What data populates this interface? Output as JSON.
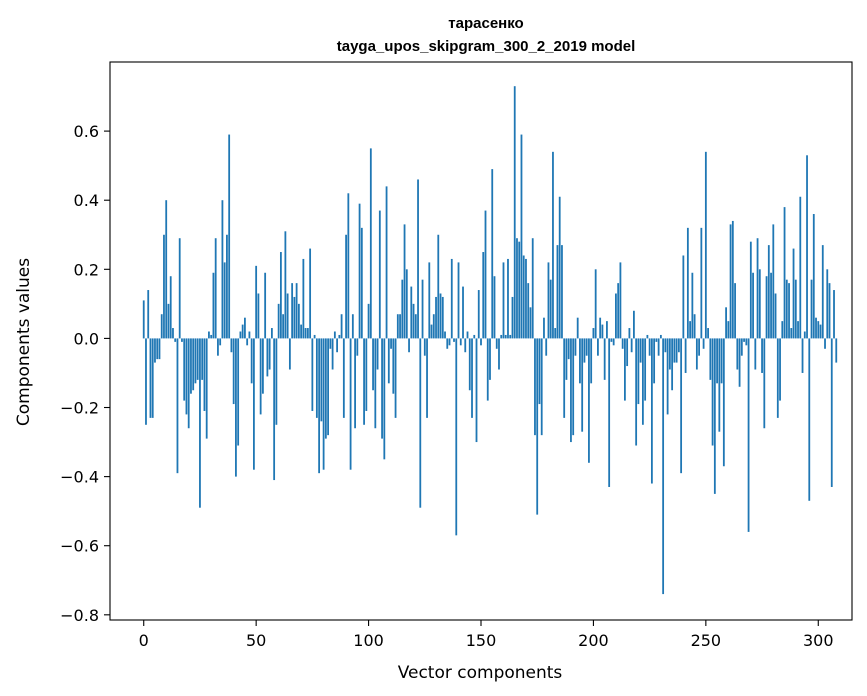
{
  "chart_data": {
    "type": "bar",
    "title": "тарасенко",
    "subtitle": "tayga_upos_skipgram_300_2_2019 model",
    "xlabel": "Vector components",
    "ylabel": "Components values",
    "xlim": [
      -15,
      315
    ],
    "ylim": [
      -0.815,
      0.8
    ],
    "xticks": [
      0,
      50,
      100,
      150,
      200,
      250,
      300
    ],
    "xtick_labels": [
      "0",
      "50",
      "100",
      "150",
      "200",
      "250",
      "300"
    ],
    "yticks": [
      -0.8,
      -0.6,
      -0.4,
      -0.2,
      0.0,
      0.2,
      0.4,
      0.6
    ],
    "ytick_labels": [
      "−0.8",
      "−0.6",
      "−0.4",
      "−0.2",
      "0.0",
      "0.2",
      "0.4",
      "0.6"
    ],
    "grid": false,
    "bar_color": "#1f77b4",
    "series": [
      {
        "name": "components",
        "values": [
          0.11,
          -0.25,
          0.14,
          -0.23,
          -0.23,
          -0.07,
          -0.06,
          -0.06,
          0.07,
          0.3,
          0.4,
          0.1,
          0.18,
          0.03,
          -0.01,
          -0.39,
          0.29,
          -0.01,
          -0.18,
          -0.22,
          -0.26,
          -0.16,
          -0.15,
          -0.13,
          -0.12,
          -0.49,
          -0.12,
          -0.21,
          -0.29,
          0.02,
          0.01,
          0.19,
          0.29,
          -0.05,
          -0.02,
          0.4,
          0.22,
          0.3,
          0.59,
          -0.04,
          -0.19,
          -0.4,
          -0.31,
          0.02,
          0.04,
          0.06,
          -0.02,
          0.02,
          -0.13,
          -0.38,
          0.21,
          0.13,
          -0.22,
          -0.16,
          0.19,
          -0.11,
          -0.09,
          0.03,
          -0.41,
          -0.25,
          0.1,
          0.25,
          0.07,
          0.31,
          0.13,
          -0.09,
          0.16,
          0.12,
          0.16,
          0.1,
          0.04,
          0.23,
          0.03,
          0.03,
          0.26,
          -0.21,
          0.01,
          -0.23,
          -0.39,
          -0.24,
          -0.38,
          -0.29,
          -0.28,
          -0.03,
          -0.09,
          0.02,
          -0.04,
          0.01,
          0.07,
          -0.23,
          0.3,
          0.42,
          -0.38,
          0.07,
          -0.26,
          -0.05,
          0.39,
          0.32,
          -0.25,
          -0.21,
          0.1,
          0.55,
          -0.15,
          -0.26,
          -0.09,
          0.37,
          -0.29,
          -0.35,
          0.44,
          -0.13,
          -0.03,
          -0.16,
          -0.23,
          0.07,
          0.07,
          0.17,
          0.33,
          0.2,
          -0.04,
          0.15,
          0.1,
          0.07,
          0.46,
          -0.49,
          0.17,
          -0.05,
          -0.23,
          0.22,
          0.04,
          0.07,
          0.12,
          0.3,
          0.13,
          0.12,
          0.02,
          -0.03,
          -0.02,
          0.23,
          -0.01,
          -0.57,
          0.22,
          -0.02,
          0.15,
          -0.04,
          0.02,
          -0.15,
          -0.23,
          0.01,
          -0.3,
          0.14,
          -0.02,
          0.25,
          0.37,
          -0.18,
          -0.12,
          0.49,
          0.18,
          -0.03,
          -0.09,
          0.01,
          0.22,
          0.01,
          0.23,
          0.01,
          0.12,
          0.73,
          0.29,
          0.28,
          0.59,
          0.24,
          0.23,
          0.16,
          0.09,
          0.29,
          -0.28,
          -0.51,
          -0.19,
          -0.28,
          0.06,
          -0.05,
          0.22,
          0.17,
          0.54,
          0.03,
          0.27,
          0.41,
          0.27,
          -0.23,
          -0.12,
          -0.06,
          -0.3,
          -0.28,
          -0.05,
          0.06,
          -0.13,
          -0.27,
          -0.07,
          -0.05,
          -0.36,
          -0.13,
          0.03,
          0.2,
          -0.05,
          0.06,
          0.04,
          -0.12,
          0.05,
          -0.43,
          -0.01,
          -0.02,
          0.13,
          0.16,
          0.22,
          -0.03,
          -0.18,
          -0.08,
          0.03,
          -0.04,
          0.08,
          -0.31,
          -0.19,
          -0.07,
          -0.25,
          -0.18,
          0.01,
          -0.05,
          -0.42,
          -0.13,
          -0.01,
          -0.05,
          0.01,
          -0.74,
          -0.04,
          -0.22,
          -0.09,
          -0.15,
          -0.07,
          -0.07,
          -0.04,
          -0.39,
          0.24,
          -0.1,
          0.32,
          0.05,
          0.19,
          0.07,
          -0.09,
          -0.05,
          0.32,
          -0.03,
          0.54,
          0.03,
          -0.12,
          -0.31,
          -0.45,
          -0.13,
          -0.27,
          -0.13,
          -0.37,
          0.09,
          0.05,
          0.33,
          0.34,
          0.16,
          -0.09,
          -0.14,
          -0.05,
          -0.01,
          -0.02,
          -0.56,
          0.28,
          0.19,
          -0.09,
          0.29,
          0.2,
          -0.1,
          -0.26,
          0.18,
          0.27,
          0.19,
          0.33,
          0.13,
          -0.23,
          -0.18,
          0.05,
          0.38,
          0.17,
          0.16,
          0.03,
          0.26,
          0.17,
          0.05,
          0.41,
          -0.1,
          0.02,
          0.53,
          -0.47,
          0.17,
          0.36,
          0.06,
          0.05,
          0.04,
          0.27,
          -0.03,
          0.2,
          0.16,
          -0.43,
          0.14,
          -0.07
        ]
      }
    ]
  }
}
